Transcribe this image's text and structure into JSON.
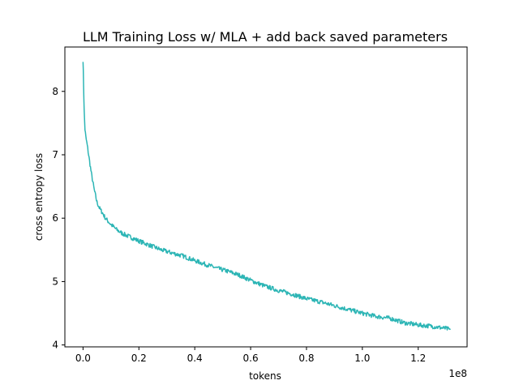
{
  "chart_data": {
    "type": "line",
    "title": "LLM Training Loss w/ MLA + add back saved parameters",
    "xlabel": "tokens",
    "ylabel": "cross entropy loss",
    "x_scale_label": "1e8",
    "xlim": [
      -6500000,
      137500000
    ],
    "ylim": [
      3.97,
      8.7
    ],
    "x_ticks": [
      {
        "value": 0,
        "label": "0.0"
      },
      {
        "value": 20000000,
        "label": "0.2"
      },
      {
        "value": 40000000,
        "label": "0.4"
      },
      {
        "value": 60000000,
        "label": "0.6"
      },
      {
        "value": 80000000,
        "label": "0.8"
      },
      {
        "value": 100000000,
        "label": "1.0"
      },
      {
        "value": 120000000,
        "label": "1.2"
      }
    ],
    "y_ticks": [
      {
        "value": 4,
        "label": "4"
      },
      {
        "value": 5,
        "label": "5"
      },
      {
        "value": 6,
        "label": "6"
      },
      {
        "value": 7,
        "label": "7"
      },
      {
        "value": 8,
        "label": "8"
      }
    ],
    "grid": false,
    "series": [
      {
        "name": "",
        "color": "#2cb5b5",
        "noise": 0.035,
        "x": [
          0,
          200000,
          400000,
          700000,
          1000000,
          1500000,
          2000000,
          3000000,
          4000000,
          5000000,
          6000000,
          7000000,
          8000000,
          10000000,
          12000000,
          14000000,
          17000000,
          20000000,
          24000000,
          28000000,
          32000000,
          36000000,
          40000000,
          44000000,
          48000000,
          52000000,
          56000000,
          60000000,
          65000000,
          70000000,
          75000000,
          80000000,
          85000000,
          90000000,
          95000000,
          100000000,
          105000000,
          110000000,
          115000000,
          118000000,
          121000000,
          124000000,
          127000000,
          130000000,
          131500000
        ],
        "y": [
          8.5,
          8.1,
          7.7,
          7.4,
          7.28,
          7.15,
          7.0,
          6.7,
          6.45,
          6.25,
          6.15,
          6.08,
          6.0,
          5.9,
          5.82,
          5.76,
          5.7,
          5.64,
          5.57,
          5.5,
          5.45,
          5.4,
          5.33,
          5.27,
          5.21,
          5.16,
          5.1,
          5.02,
          4.93,
          4.86,
          4.8,
          4.73,
          4.68,
          4.62,
          4.56,
          4.5,
          4.45,
          4.42,
          4.35,
          4.33,
          4.31,
          4.3,
          4.28,
          4.26,
          4.24
        ]
      }
    ]
  }
}
